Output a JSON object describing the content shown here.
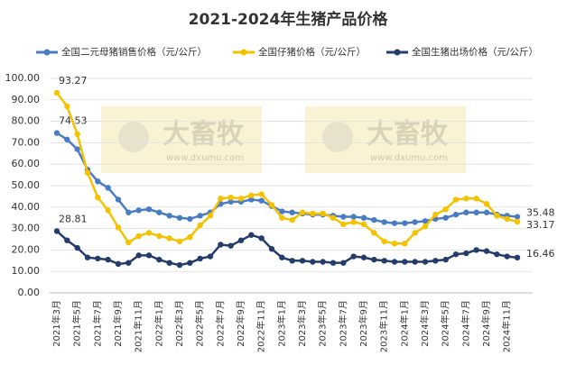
{
  "chart_data": {
    "type": "line",
    "title": "2021-2024年生猪产品价格",
    "watermark": {
      "brand": "大畜牧",
      "url": "www.dxumu.com"
    },
    "categories": [
      "2021年3月",
      null,
      "2021年5月",
      null,
      "2021年7月",
      null,
      "2021年9月",
      null,
      "2021年11月",
      null,
      "2022年1月",
      null,
      "2022年3月",
      null,
      "2022年5月",
      null,
      "2022年7月",
      null,
      "2022年9月",
      null,
      "2022年11月",
      null,
      "2023年1月",
      null,
      "2023年3月",
      null,
      "2023年5月",
      null,
      "2023年7月",
      null,
      "2023年9月",
      null,
      "2023年11月",
      null,
      "2024年1月",
      null,
      "2024年3月",
      null,
      "2024年5月",
      null,
      "2024年7月",
      null,
      "2024年9月",
      null,
      "2024年11月",
      null
    ],
    "series": [
      {
        "name": "全国二元母猪销售价格（元/公斤）",
        "color": "#4a7cc4",
        "values": [
          74.53,
          71.5,
          67,
          57.5,
          52,
          49,
          43.5,
          37.5,
          38.5,
          39,
          37.5,
          36,
          35,
          34.5,
          36,
          37.5,
          41.5,
          42.5,
          42.5,
          43.5,
          43,
          40.5,
          38,
          37.5,
          37,
          36.5,
          36.5,
          36,
          35.5,
          35.5,
          35,
          34,
          33,
          32.5,
          32.5,
          33,
          33.5,
          34.5,
          35,
          36.5,
          37.5,
          37.5,
          37.5,
          36.5,
          36,
          35.48
        ]
      },
      {
        "name": "全国仔猪价格（元/公斤）",
        "color": "#f5c200",
        "values": [
          93.27,
          87,
          74,
          56,
          44.5,
          38.5,
          30.5,
          23.5,
          26.5,
          28,
          26.5,
          25.5,
          24,
          26,
          31.5,
          36,
          44,
          44.5,
          44,
          45.5,
          46,
          41,
          35,
          34,
          37.5,
          37,
          37,
          35,
          32,
          33,
          32,
          28,
          24,
          23,
          23,
          28,
          31,
          36.5,
          39,
          43.5,
          44,
          44,
          41.5,
          36,
          34.5,
          33.17
        ]
      },
      {
        "name": "全国生猪出场价格（元/公斤）",
        "color": "#243c6c",
        "values": [
          28.81,
          24.5,
          21,
          16.5,
          16,
          15.5,
          13.5,
          14,
          17.5,
          17.5,
          15.5,
          14,
          13,
          14,
          16,
          17,
          22.5,
          22,
          24.5,
          27,
          25.5,
          20.5,
          16.5,
          15,
          15,
          14.5,
          14.5,
          14,
          14,
          17,
          16.5,
          15.5,
          15,
          14.5,
          14.5,
          14.5,
          14.5,
          15,
          15.5,
          18,
          18.5,
          20,
          19.5,
          18,
          17,
          16.46
        ]
      }
    ],
    "data_labels": "ends",
    "ylim": [
      0,
      100
    ],
    "yticks": [
      {
        "value": 0,
        "label": "0.00"
      },
      {
        "value": 10,
        "label": "10.00"
      },
      {
        "value": 20,
        "label": "20.00"
      },
      {
        "value": 30,
        "label": "30.00"
      },
      {
        "value": 40,
        "label": "40.00"
      },
      {
        "value": 50,
        "label": "50.00"
      },
      {
        "value": 60,
        "label": "60.00"
      },
      {
        "value": 70,
        "label": "70.00"
      },
      {
        "value": 80,
        "label": "80.00"
      },
      {
        "value": 90,
        "label": "90.00"
      },
      {
        "value": 100,
        "label": "100.00"
      }
    ],
    "grid": true,
    "legend": "top"
  }
}
